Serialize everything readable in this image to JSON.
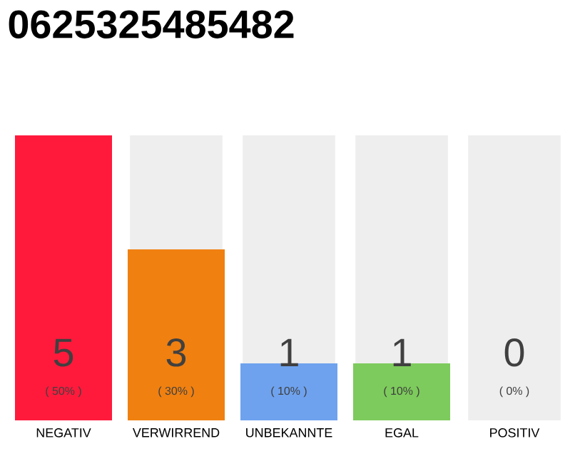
{
  "chart_data": {
    "type": "bar",
    "title": "0625325485482",
    "categories": [
      "NEGATIV",
      "VERWIRREND",
      "UNBEKANNTE",
      "EGAL",
      "POSITIV"
    ],
    "values": [
      5,
      3,
      1,
      1,
      0
    ],
    "colors": [
      "#ff1a3c",
      "#f08010",
      "#6ea2ee",
      "#7dcb5c",
      "#bbbbbb"
    ],
    "ylim": [
      0,
      5
    ],
    "data_labels": true,
    "bands": [
      {
        "axis": "x",
        "from": "VERWIRREND",
        "to": "VERWIRREND",
        "color": "#eeeeee"
      },
      {
        "axis": "x",
        "from": "UNBEKANNTE",
        "to": "UNBEKANNTE",
        "color": "#eeeeee"
      },
      {
        "axis": "x",
        "from": "EGAL",
        "to": "EGAL",
        "color": "#eeeeee"
      },
      {
        "axis": "x",
        "from": "POSITIV",
        "to": "POSITIV",
        "color": "#eeeeee"
      }
    ],
    "annotations": [
      "( 50% )",
      "( 30% )",
      "( 10% )",
      "( 10% )",
      "( 0% )"
    ]
  }
}
